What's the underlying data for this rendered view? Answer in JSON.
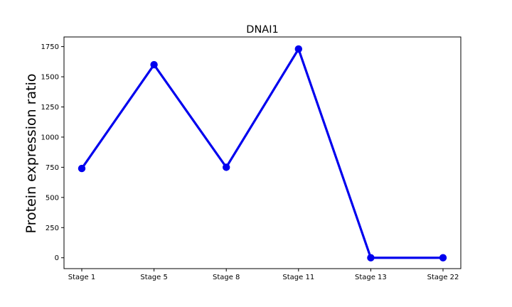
{
  "chart_data": {
    "type": "line",
    "title": "DNAI1",
    "xlabel": "",
    "ylabel": "Protein expression ratio",
    "categories": [
      "Stage 1",
      "Stage 5",
      "Stage 8",
      "Stage 11",
      "Stage 13",
      "Stage 22"
    ],
    "series": [
      {
        "values": [
          740,
          1600,
          750,
          1730,
          0,
          0
        ],
        "color": "#0000ee"
      }
    ],
    "ylim": [
      -90,
      1830
    ],
    "yticks": [
      0,
      250,
      500,
      750,
      1000,
      1250,
      1500,
      1750
    ],
    "grid": false,
    "legend": "none"
  }
}
